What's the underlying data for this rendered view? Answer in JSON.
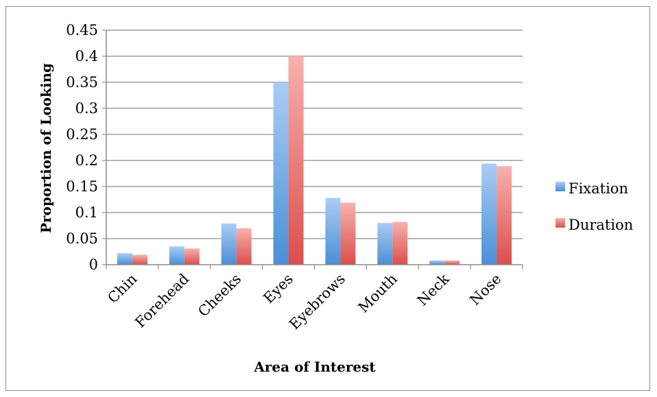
{
  "chart_data": {
    "type": "bar",
    "title": "",
    "xlabel": "Area of Interest",
    "ylabel": "Proportion of Looking",
    "ylim": [
      0,
      0.45
    ],
    "yticks": [
      "0",
      "0.05",
      "0.1",
      "0.15",
      "0.2",
      "0.25",
      "0.3",
      "0.35",
      "0.4",
      "0.45"
    ],
    "ytick_values": [
      0,
      0.05,
      0.1,
      0.15,
      0.2,
      0.25,
      0.3,
      0.35,
      0.4,
      0.45
    ],
    "grid": true,
    "legend_position": "right",
    "categories": [
      "Chin",
      "Forehead",
      "Cheeks",
      "Eyes",
      "Eyebrows",
      "Mouth",
      "Neck",
      "Nose"
    ],
    "series": [
      {
        "name": "Fixation",
        "color": "#5b9bd5",
        "values": [
          0.022,
          0.035,
          0.079,
          0.35,
          0.128,
          0.08,
          0.008,
          0.194
        ]
      },
      {
        "name": "Duration",
        "color": "#e46c6a",
        "values": [
          0.019,
          0.031,
          0.07,
          0.4,
          0.119,
          0.082,
          0.008,
          0.189
        ]
      }
    ]
  }
}
